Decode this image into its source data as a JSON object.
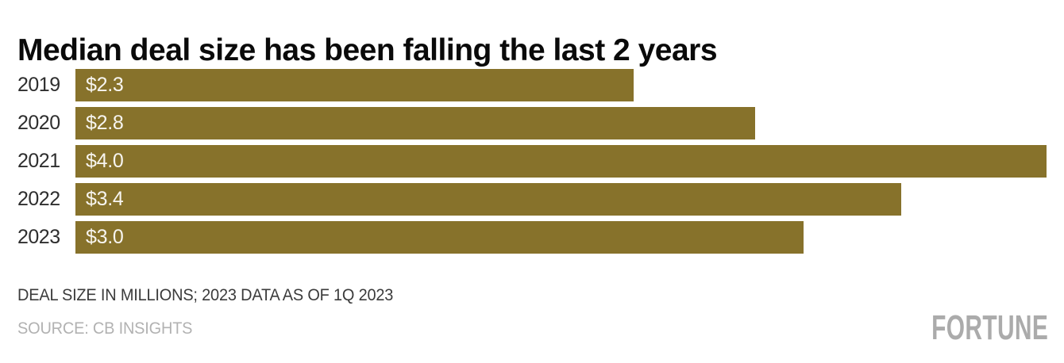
{
  "chart_data": {
    "type": "bar",
    "orientation": "horizontal",
    "title": "Median deal size has been falling the last 2 years",
    "categories": [
      "2019",
      "2020",
      "2021",
      "2022",
      "2023"
    ],
    "values": [
      2.3,
      2.8,
      4.0,
      3.4,
      3.0
    ],
    "bar_labels": [
      "$2.3",
      "$2.8",
      "$4.0",
      "$3.4",
      "$3.0"
    ],
    "xlim": [
      0,
      4.0
    ],
    "grid": "off",
    "legend": "none",
    "bar_color": "#87722B",
    "bar_label_color": "#F7F5F0",
    "category_label_color": "#2E2E2E"
  },
  "footnote": {
    "text": "DEAL SIZE IN MILLIONS; 2023 DATA AS OF 1Q 2023"
  },
  "source": {
    "text": "SOURCE: CB INSIGHTS"
  },
  "branding": {
    "logo_text": "FORTUNE",
    "logo_color": "#ABABAB"
  }
}
